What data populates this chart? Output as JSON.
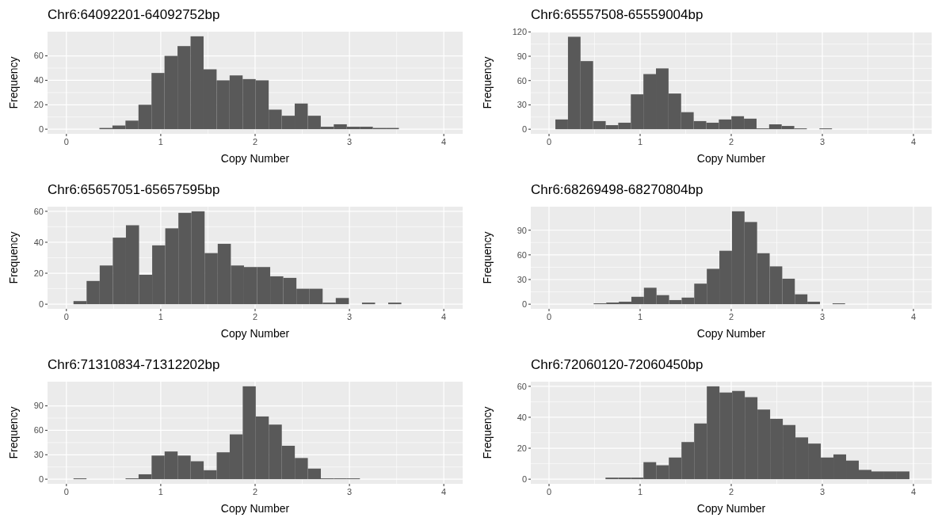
{
  "chart_data": [
    {
      "type": "histogram",
      "title": "Chr6:64092201-64092752bp",
      "xlabel": "Copy Number",
      "ylabel": "Frequency",
      "color": "#595959",
      "grid": true,
      "xlim": [
        -0.2,
        4.2
      ],
      "xticks": [
        0,
        1,
        2,
        3,
        4
      ],
      "ylim": [
        -3.8,
        79.8
      ],
      "yticks": [
        0,
        20,
        40,
        60
      ],
      "bins": [
        0.35,
        0.488,
        0.626,
        0.764,
        0.902,
        1.04,
        1.178,
        1.316,
        1.454,
        1.592,
        1.73,
        1.868,
        2.006,
        2.144,
        2.282,
        2.42,
        2.558,
        2.696,
        2.834,
        2.972,
        3.11,
        3.248,
        3.386,
        3.524
      ],
      "values": [
        1,
        3,
        7,
        20,
        46,
        60,
        68,
        76,
        49,
        40,
        44,
        41,
        40,
        16,
        11,
        21,
        11,
        2,
        4,
        2,
        2,
        1,
        1
      ]
    },
    {
      "type": "histogram",
      "title": "Chr6:65557508-65559004bp",
      "xlabel": "Copy Number",
      "ylabel": "Frequency",
      "color": "#595959",
      "grid": true,
      "xlim": [
        -0.2,
        4.2
      ],
      "xticks": [
        0,
        1,
        2,
        3,
        4
      ],
      "ylim": [
        -5.7,
        120.3
      ],
      "yticks": [
        0,
        30,
        60,
        90,
        120
      ],
      "bins": [
        0.07,
        0.208,
        0.346,
        0.484,
        0.622,
        0.76,
        0.898,
        1.036,
        1.174,
        1.312,
        1.45,
        1.588,
        1.726,
        1.864,
        2.002,
        2.14,
        2.278,
        2.416,
        2.554,
        2.692,
        2.83,
        2.968,
        3.106
      ],
      "values": [
        12,
        114,
        84,
        10,
        5,
        8,
        43,
        68,
        75,
        44,
        21,
        10,
        8,
        12,
        16,
        13,
        1,
        6,
        4,
        1,
        0,
        1
      ]
    },
    {
      "type": "histogram",
      "title": "Chr6:65657051-65657595bp",
      "xlabel": "Copy Number",
      "ylabel": "Frequency",
      "color": "#595959",
      "grid": true,
      "xlim": [
        -0.2,
        4.2
      ],
      "xticks": [
        0,
        1,
        2,
        3,
        4
      ],
      "ylim": [
        -3,
        63
      ],
      "yticks": [
        0,
        20,
        40,
        60
      ],
      "bins": [
        0.075,
        0.214,
        0.353,
        0.492,
        0.631,
        0.77,
        0.909,
        1.048,
        1.187,
        1.326,
        1.465,
        1.604,
        1.743,
        1.882,
        2.021,
        2.16,
        2.299,
        2.438,
        2.577,
        2.716,
        2.855,
        2.994,
        3.133,
        3.272,
        3.411,
        3.55
      ],
      "values": [
        2,
        15,
        25,
        43,
        51,
        19,
        38,
        49,
        59,
        60,
        33,
        39,
        25,
        24,
        24,
        18,
        17,
        10,
        10,
        1,
        4,
        0,
        1,
        0,
        1
      ]
    },
    {
      "type": "histogram",
      "title": "Chr6:68269498-68270804bp",
      "xlabel": "Copy Number",
      "ylabel": "Frequency",
      "color": "#595959",
      "grid": true,
      "xlim": [
        -0.2,
        4.2
      ],
      "xticks": [
        0,
        1,
        2,
        3,
        4
      ],
      "ylim": [
        -5.65,
        118.65
      ],
      "yticks": [
        0,
        30,
        60,
        90
      ],
      "bins": [
        0.49,
        0.628,
        0.766,
        0.904,
        1.042,
        1.18,
        1.318,
        1.456,
        1.594,
        1.732,
        1.87,
        2.008,
        2.146,
        2.284,
        2.422,
        2.56,
        2.698,
        2.836,
        2.974,
        3.112,
        3.25
      ],
      "values": [
        1,
        2,
        3,
        9,
        20,
        11,
        5,
        8,
        25,
        43,
        65,
        113,
        100,
        62,
        46,
        31,
        12,
        3,
        0,
        1
      ]
    },
    {
      "type": "histogram",
      "title": "Chr6:71310834-71312202bp",
      "xlabel": "Copy Number",
      "ylabel": "Frequency",
      "color": "#595959",
      "grid": true,
      "xlim": [
        -0.2,
        4.2
      ],
      "xticks": [
        0,
        1,
        2,
        3,
        4
      ],
      "ylim": [
        -5.7,
        119.7
      ],
      "yticks": [
        0,
        30,
        60,
        90
      ],
      "bins": [
        0.075,
        0.213,
        0.351,
        0.489,
        0.627,
        0.765,
        0.903,
        1.041,
        1.179,
        1.317,
        1.455,
        1.593,
        1.731,
        1.869,
        2.007,
        2.145,
        2.283,
        2.421,
        2.559,
        2.697,
        2.835,
        2.973,
        3.111
      ],
      "values": [
        1,
        0,
        0,
        0,
        1,
        6,
        29,
        34,
        29,
        22,
        11,
        33,
        55,
        114,
        77,
        67,
        41,
        26,
        13,
        1,
        1,
        1
      ]
    },
    {
      "type": "histogram",
      "title": "Chr6:72060120-72060450bp",
      "xlabel": "Copy Number",
      "ylabel": "Frequency",
      "color": "#595959",
      "grid": true,
      "xlim": [
        -0.2,
        4.2
      ],
      "xticks": [
        0,
        1,
        2,
        3,
        4
      ],
      "ylim": [
        -3,
        63
      ],
      "yticks": [
        0,
        20,
        40,
        60
      ],
      "bins": [
        0.62,
        0.759,
        0.898,
        1.037,
        1.176,
        1.315,
        1.454,
        1.593,
        1.732,
        1.871,
        2.01,
        2.149,
        2.288,
        2.427,
        2.566,
        2.705,
        2.844,
        2.983,
        3.122,
        3.261,
        3.4,
        3.539,
        3.678,
        3.817,
        3.956
      ],
      "values": [
        1,
        1,
        1,
        11,
        9,
        14,
        24,
        36,
        60,
        56,
        57,
        53,
        45,
        39,
        35,
        27,
        23,
        14,
        16,
        12,
        6,
        5,
        5,
        5
      ]
    }
  ]
}
